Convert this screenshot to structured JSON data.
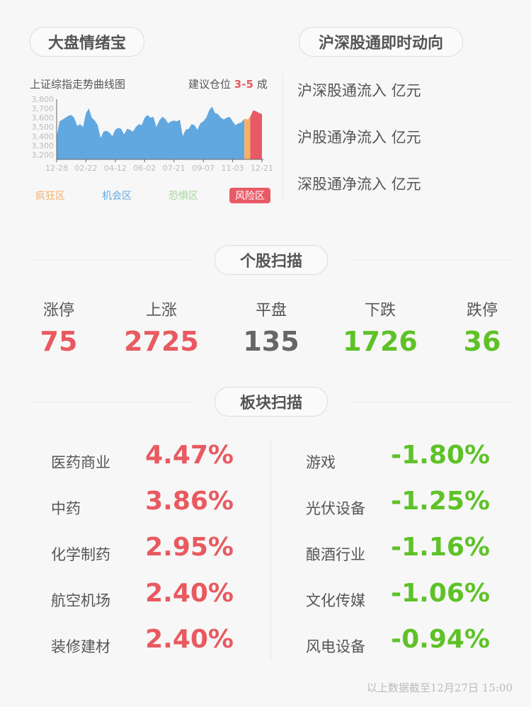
{
  "market": {
    "title": "大盘情绪宝",
    "chart_title": "上证综指走势曲线图",
    "advice_prefix": "建议仓位",
    "advice_value": "3-5",
    "advice_suffix": "成",
    "legend": [
      {
        "label": "疯狂区",
        "color": "#f5b16b"
      },
      {
        "label": "机会区",
        "color": "#62a8e0"
      },
      {
        "label": "恐惧区",
        "color": "#a6d79a"
      },
      {
        "label": "风险区",
        "color": "#e85a66",
        "active": true
      }
    ]
  },
  "chart_data": {
    "type": "area",
    "ylim": [
      3150,
      3800
    ],
    "yticks": [
      "3,800",
      "3,700",
      "3,600",
      "3,500",
      "3,400",
      "3,300",
      "3,200"
    ],
    "xticks": [
      "12-28",
      "02-22",
      "04-12",
      "06-02",
      "07-21",
      "09-07",
      "11-03",
      "12-21"
    ],
    "values": [
      3400,
      3560,
      3580,
      3600,
      3620,
      3630,
      3600,
      3510,
      3530,
      3500,
      3650,
      3700,
      3600,
      3570,
      3520,
      3380,
      3450,
      3460,
      3440,
      3400,
      3470,
      3490,
      3480,
      3420,
      3480,
      3470,
      3450,
      3500,
      3530,
      3520,
      3600,
      3630,
      3600,
      3610,
      3500,
      3570,
      3610,
      3590,
      3540,
      3560,
      3570,
      3560,
      3580,
      3400,
      3470,
      3480,
      3530,
      3520,
      3470,
      3540,
      3560,
      3600,
      3680,
      3720,
      3650,
      3640,
      3600,
      3580,
      3600,
      3610,
      3560,
      3520,
      3540,
      3550,
      3590,
      3580,
      3610,
      3680,
      3670,
      3650,
      3640
    ],
    "zones": [
      "机会区",
      "疯狂区",
      "风险区"
    ],
    "zone_starts": [
      0,
      64,
      66
    ]
  },
  "hsgt": {
    "title": "沪深股通即时动向",
    "rows": [
      "沪深股通流入 亿元",
      "沪股通净流入 亿元",
      "深股通净流入 亿元"
    ]
  },
  "stocks": {
    "title": "个股扫描",
    "items": [
      {
        "label": "涨停",
        "value": "75",
        "tone": "red"
      },
      {
        "label": "上涨",
        "value": "2725",
        "tone": "red"
      },
      {
        "label": "平盘",
        "value": "135",
        "tone": "gray"
      },
      {
        "label": "下跌",
        "value": "1726",
        "tone": "green"
      },
      {
        "label": "跌停",
        "value": "36",
        "tone": "green"
      }
    ]
  },
  "sectors": {
    "title": "板块扫描",
    "up": [
      {
        "name": "医药商业",
        "pct": "4.47%"
      },
      {
        "name": "中药",
        "pct": "3.86%"
      },
      {
        "name": "化学制药",
        "pct": "2.95%"
      },
      {
        "name": "航空机场",
        "pct": "2.40%"
      },
      {
        "name": "装修建材",
        "pct": "2.40%"
      }
    ],
    "down": [
      {
        "name": "游戏",
        "pct": "-1.80%"
      },
      {
        "name": "光伏设备",
        "pct": "-1.25%"
      },
      {
        "name": "酿酒行业",
        "pct": "-1.16%"
      },
      {
        "name": "文化传媒",
        "pct": "-1.06%"
      },
      {
        "name": "风电设备",
        "pct": "-0.94%"
      }
    ]
  },
  "footer": "以上数据截至12月27日 15:00"
}
